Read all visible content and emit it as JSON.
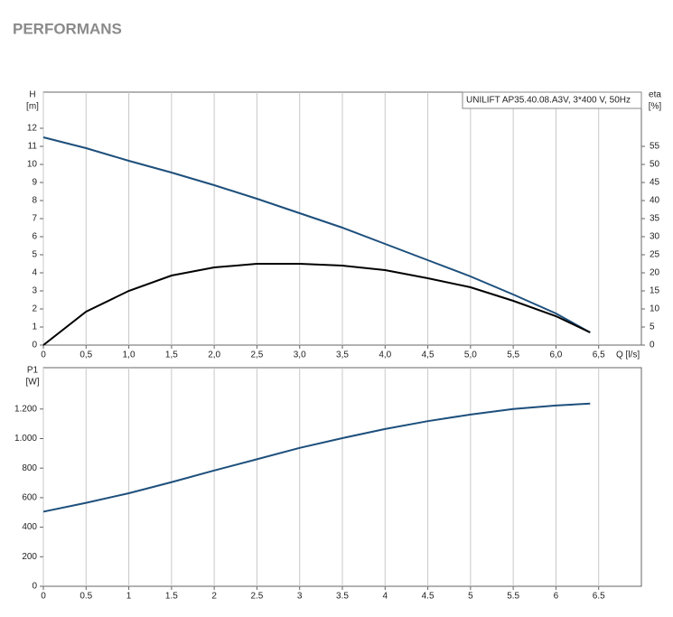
{
  "header": {
    "title": "PERFORMANS"
  },
  "chart_data": [
    {
      "type": "line",
      "annotation": "UNILIFT AP35.40.08.A3V, 3*400 V, 50Hz",
      "ylabel": "H",
      "yunit": "[m]",
      "y2label": "eta",
      "y2unit": "[%]",
      "xlabel": "Q [l/s]",
      "xlim": [
        0,
        7
      ],
      "xticks": [
        0,
        {
          "value": 0.5,
          "label": "0,5"
        },
        {
          "value": 1,
          "label": "1,0"
        },
        {
          "value": 1.5,
          "label": "1,5"
        },
        {
          "value": 2,
          "label": "2,0"
        },
        {
          "value": 2.5,
          "label": "2,5"
        },
        {
          "value": 3,
          "label": "3,0"
        },
        {
          "value": 3.5,
          "label": "3,5"
        },
        {
          "value": 4,
          "label": "4,0"
        },
        {
          "value": 4.5,
          "label": "4,5"
        },
        {
          "value": 5,
          "label": "5,0"
        },
        {
          "value": 5.5,
          "label": "5,5"
        },
        {
          "value": 6,
          "label": "6,0"
        },
        {
          "value": 6.5,
          "label": "6,5"
        }
      ],
      "ylim": [
        0,
        14
      ],
      "yticks": [
        0,
        1,
        2,
        3,
        4,
        5,
        6,
        7,
        8,
        9,
        10,
        11,
        12
      ],
      "y2lim": [
        0,
        70
      ],
      "y2ticks": [
        0,
        5,
        10,
        15,
        20,
        25,
        30,
        35,
        40,
        45,
        50,
        55
      ],
      "grid": "x",
      "series": [
        {
          "color": "#1d4f7c",
          "x": [
            0,
            0.5,
            1,
            1.5,
            2,
            2.5,
            3,
            3.5,
            4,
            4.5,
            5,
            5.5,
            6,
            6.4
          ],
          "values": [
            11.5,
            10.9,
            10.2,
            9.55,
            8.85,
            8.1,
            7.3,
            6.5,
            5.6,
            4.7,
            3.8,
            2.8,
            1.75,
            0.7
          ]
        },
        {
          "color": "#000000",
          "axis": "y2",
          "x": [
            0,
            0.5,
            1,
            1.5,
            2,
            2.5,
            3,
            3.5,
            4,
            4.5,
            5,
            5.5,
            6,
            6.4
          ],
          "values": [
            0,
            9.25,
            15,
            19.25,
            21.5,
            22.5,
            22.5,
            22,
            20.75,
            18.5,
            16,
            12.25,
            8,
            3.5
          ]
        }
      ]
    },
    {
      "type": "line",
      "ylabel": "P1",
      "yunit": "[W]",
      "xlim": [
        0,
        7
      ],
      "xticks": [
        0,
        0.5,
        1,
        1.5,
        2,
        2.5,
        3,
        3.5,
        4,
        4.5,
        5,
        5.5,
        6,
        6.5
      ],
      "ylim": [
        0,
        1480
      ],
      "yticks": [
        0,
        200,
        400,
        600,
        800,
        {
          "value": 1000,
          "label": "1.000"
        },
        {
          "value": 1200,
          "label": "1.200"
        }
      ],
      "grid": "x",
      "series": [
        {
          "color": "#1d4f7c",
          "x": [
            0,
            0.5,
            1,
            1.5,
            2,
            2.5,
            3,
            3.5,
            4,
            4.5,
            5,
            5.5,
            6,
            6.4
          ],
          "values": [
            505,
            565,
            630,
            705,
            784,
            860,
            937,
            1003,
            1065,
            1118,
            1163,
            1200,
            1224,
            1237
          ]
        }
      ]
    }
  ]
}
